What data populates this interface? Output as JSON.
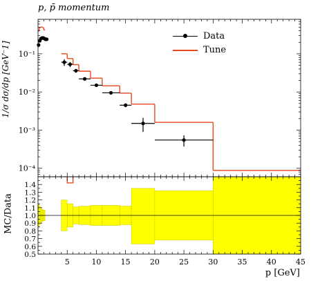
{
  "title": "p, p̄ momentum",
  "legend": {
    "data_label": "Data",
    "tune_label": "Tune"
  },
  "colors": {
    "tune": "#e8481c",
    "band": "#ffff00",
    "band_edge": "#c8c800",
    "data": "#000000"
  },
  "chart_data": [
    {
      "type": "line",
      "panel": "main",
      "ylabel": "1/σ dσ/dp [GeV⁻1]",
      "ylog": true,
      "xlim": [
        0,
        45
      ],
      "ylim": [
        6e-05,
        0.8
      ],
      "y_tick_labels": [
        "10⁻⁴",
        "10⁻³",
        "10⁻²",
        "10⁻¹"
      ],
      "y_tick_values": [
        0.0001,
        0.001,
        0.01,
        0.1
      ],
      "series": [
        {
          "name": "Data",
          "type": "errorbar",
          "points": [
            {
              "x": 0.1,
              "y": 0.17,
              "xerr": 0.1,
              "yerr": 0.02
            },
            {
              "x": 0.3,
              "y": 0.22,
              "xerr": 0.1,
              "yerr": 0.02
            },
            {
              "x": 0.5,
              "y": 0.25,
              "xerr": 0.1,
              "yerr": 0.02
            },
            {
              "x": 0.7,
              "y": 0.26,
              "xerr": 0.1,
              "yerr": 0.02
            },
            {
              "x": 0.9,
              "y": 0.26,
              "xerr": 0.1,
              "yerr": 0.02
            },
            {
              "x": 1.1,
              "y": 0.25,
              "xerr": 0.1,
              "yerr": 0.02
            },
            {
              "x": 1.3,
              "y": 0.24,
              "xerr": 0.1,
              "yerr": 0.02
            },
            {
              "x": 1.5,
              "y": 0.24,
              "xerr": 0.1,
              "yerr": 0.02
            },
            {
              "x": 4.5,
              "y": 0.06,
              "xerr": 0.5,
              "yerr": 0.012
            },
            {
              "x": 5.5,
              "y": 0.053,
              "xerr": 0.5,
              "yerr": 0.008
            },
            {
              "x": 6.5,
              "y": 0.036,
              "xerr": 0.5,
              "yerr": 0.004
            },
            {
              "x": 8.0,
              "y": 0.022,
              "xerr": 1.0,
              "yerr": 0.002
            },
            {
              "x": 10.0,
              "y": 0.015,
              "xerr": 1.0,
              "yerr": 0.0015
            },
            {
              "x": 12.5,
              "y": 0.0095,
              "xerr": 1.5,
              "yerr": 0.001
            },
            {
              "x": 15.0,
              "y": 0.0045,
              "xerr": 1.0,
              "yerr": 0.0005
            },
            {
              "x": 18.0,
              "y": 0.0015,
              "xerr": 2.0,
              "yerr": 0.0006
            },
            {
              "x": 25.0,
              "y": 0.00055,
              "xerr": 5.0,
              "yerr": 0.00018
            }
          ]
        },
        {
          "name": "Tune",
          "type": "step",
          "bins": [
            {
              "x0": 0.0,
              "x1": 0.2,
              "y": 0.4
            },
            {
              "x0": 0.2,
              "x1": 0.4,
              "y": 0.48
            },
            {
              "x0": 0.4,
              "x1": 0.6,
              "y": 0.5
            },
            {
              "x0": 0.6,
              "x1": 0.8,
              "y": 0.5
            },
            {
              "x0": 0.8,
              "x1": 1.0,
              "y": 0.48
            },
            {
              "x0": 1.0,
              "x1": 1.2,
              "y": 0.42
            },
            {
              "x0": 4.0,
              "x1": 5.0,
              "y": 0.1
            },
            {
              "x0": 5.0,
              "x1": 6.0,
              "y": 0.075
            },
            {
              "x0": 6.0,
              "x1": 7.0,
              "y": 0.052
            },
            {
              "x0": 7.0,
              "x1": 9.0,
              "y": 0.035
            },
            {
              "x0": 9.0,
              "x1": 11.0,
              "y": 0.023
            },
            {
              "x0": 11.0,
              "x1": 14.0,
              "y": 0.0145
            },
            {
              "x0": 14.0,
              "x1": 16.0,
              "y": 0.0093
            },
            {
              "x0": 16.0,
              "x1": 20.0,
              "y": 0.0048
            },
            {
              "x0": 20.0,
              "x1": 30.0,
              "y": 0.0016
            },
            {
              "x0": 30.0,
              "x1": 45.0,
              "y": 8.8e-05
            }
          ]
        }
      ]
    },
    {
      "type": "line",
      "panel": "ratio",
      "ylabel": "MC/Data",
      "xlabel": "p [GeV]",
      "xlim": [
        0,
        45
      ],
      "ylim": [
        0.5,
        1.5
      ],
      "x_ticks": [
        5,
        10,
        15,
        20,
        25,
        30,
        35,
        40,
        45
      ],
      "x_tick_labels": [
        "5",
        "10",
        "15",
        "20",
        "25",
        "30",
        "35",
        "40",
        "45"
      ],
      "y_ticks": [
        0.5,
        0.6,
        0.7,
        0.8,
        0.9,
        1.0,
        1.1,
        1.2,
        1.3,
        1.4
      ],
      "y_tick_labels": [
        "0.5",
        "0.6",
        "0.7",
        "0.8",
        "0.9",
        "1.0",
        "1.1",
        "1.2",
        "1.3",
        "1.4"
      ],
      "band": [
        {
          "x0": 0.0,
          "x1": 0.2,
          "lo": 0.85,
          "hi": 1.15
        },
        {
          "x0": 0.2,
          "x1": 0.4,
          "lo": 0.88,
          "hi": 1.12
        },
        {
          "x0": 0.4,
          "x1": 0.6,
          "lo": 0.9,
          "hi": 1.1
        },
        {
          "x0": 0.6,
          "x1": 0.8,
          "lo": 0.92,
          "hi": 1.08
        },
        {
          "x0": 0.8,
          "x1": 1.0,
          "lo": 0.93,
          "hi": 1.07
        },
        {
          "x0": 1.0,
          "x1": 1.2,
          "lo": 0.93,
          "hi": 1.07
        },
        {
          "x0": 4.0,
          "x1": 5.0,
          "lo": 0.8,
          "hi": 1.2
        },
        {
          "x0": 5.0,
          "x1": 6.0,
          "lo": 0.85,
          "hi": 1.15
        },
        {
          "x0": 6.0,
          "x1": 7.0,
          "lo": 0.89,
          "hi": 1.11
        },
        {
          "x0": 7.0,
          "x1": 9.0,
          "lo": 0.88,
          "hi": 1.12
        },
        {
          "x0": 9.0,
          "x1": 11.0,
          "lo": 0.87,
          "hi": 1.13
        },
        {
          "x0": 11.0,
          "x1": 14.0,
          "lo": 0.87,
          "hi": 1.13
        },
        {
          "x0": 14.0,
          "x1": 16.0,
          "lo": 0.88,
          "hi": 1.12
        },
        {
          "x0": 16.0,
          "x1": 20.0,
          "lo": 0.63,
          "hi": 1.35
        },
        {
          "x0": 20.0,
          "x1": 30.0,
          "lo": 0.68,
          "hi": 1.32
        },
        {
          "x0": 30.0,
          "x1": 45.0,
          "lo": 0.5,
          "hi": 1.5
        }
      ],
      "ratio_step": [
        {
          "x0": 5.0,
          "x1": 6.0,
          "y": 1.42
        }
      ]
    }
  ]
}
